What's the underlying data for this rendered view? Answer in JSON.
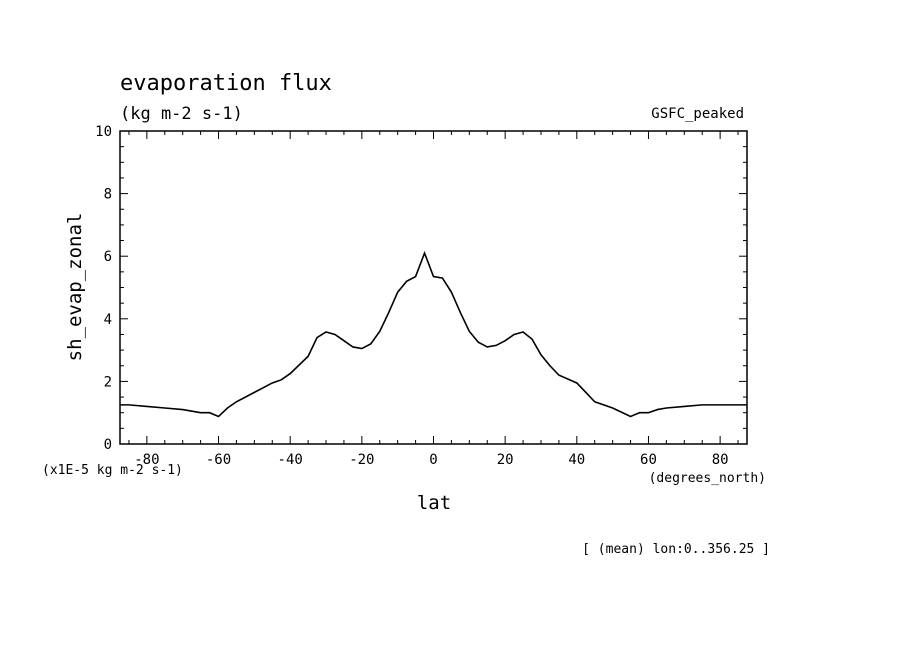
{
  "colors": {
    "background": "#ffffff",
    "foreground": "#000000"
  },
  "chart_data": {
    "type": "line",
    "title": "evaporation flux",
    "subtitle": "(kg m-2 s-1)",
    "dataset": "GSFC_peaked",
    "xlabel": "lat",
    "xunits": "(degrees_north)",
    "ylabel": "sh_evap_zonal",
    "yunits": "(x1E-5 kg m-2 s-1)",
    "footer": "[ (mean) lon:0..356.25 ]",
    "xlim": [
      -87.5,
      87.5
    ],
    "ylim": [
      0,
      10
    ],
    "xticks": [
      -80,
      -60,
      -40,
      -20,
      0,
      20,
      40,
      60,
      80
    ],
    "xtick_labels": [
      "-80",
      "-60",
      "-40",
      "-20",
      "0",
      "20",
      "40",
      "60",
      "80"
    ],
    "yticks": [
      0,
      2,
      4,
      6,
      8,
      10
    ],
    "ytick_labels": [
      "0",
      "2",
      "4",
      "6",
      "8",
      "10"
    ],
    "grid": false,
    "series": [
      {
        "x": [
          -87.5,
          -85,
          -80,
          -75,
          -70,
          -65,
          -62.5,
          -60,
          -57.5,
          -55,
          -50,
          -45,
          -42.5,
          -40,
          -35,
          -32.5,
          -30,
          -27.5,
          -25,
          -22.5,
          -20,
          -17.5,
          -15,
          -12.5,
          -10,
          -7.5,
          -5,
          -2.5,
          0,
          2.5,
          5,
          7.5,
          10,
          12.5,
          15,
          17.5,
          20,
          22.5,
          25,
          27.5,
          30,
          32.5,
          35,
          40,
          42.5,
          45,
          50,
          55,
          57.5,
          60,
          62.5,
          65,
          70,
          75,
          80,
          85,
          87.5
        ],
        "y": [
          1.25,
          1.25,
          1.2,
          1.15,
          1.1,
          1.0,
          1.0,
          0.88,
          1.15,
          1.35,
          1.65,
          1.95,
          2.05,
          2.25,
          2.8,
          3.4,
          3.58,
          3.5,
          3.3,
          3.1,
          3.05,
          3.2,
          3.6,
          4.2,
          4.85,
          5.2,
          5.35,
          6.1,
          5.35,
          5.3,
          4.85,
          4.2,
          3.6,
          3.25,
          3.1,
          3.15,
          3.3,
          3.5,
          3.58,
          3.35,
          2.85,
          2.5,
          2.2,
          1.95,
          1.65,
          1.35,
          1.15,
          0.88,
          1.0,
          1.0,
          1.1,
          1.15,
          1.2,
          1.25,
          1.25,
          1.25,
          1.25
        ]
      }
    ]
  }
}
